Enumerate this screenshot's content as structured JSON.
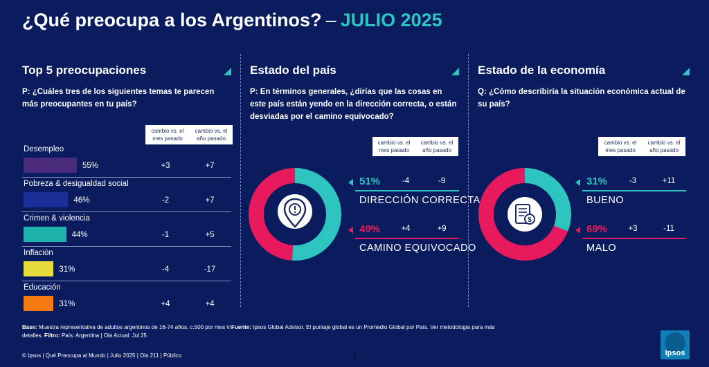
{
  "header": {
    "title": "¿Qué preocupa a los Argentinos?",
    "separator": "–",
    "month": "JULIO 2025"
  },
  "colors": {
    "background": "#0b1c5e",
    "teal": "#2ec4c0",
    "pink": "#e8195c"
  },
  "panels": {
    "top5": {
      "title": "Top 5 preocupaciones",
      "question": "P: ¿Cuáles tres de los siguientes temas te parecen más preocupantes en tu país?",
      "col1": "cambio vs. el mes pasado",
      "col2": "cambio vs. el año pasado"
    },
    "pais": {
      "title": "Estado del país",
      "question": "P: En términos generales, ¿dirías que las cosas en este país están yendo en la dirección correcta, o están desviadas por el camino equivocado?",
      "col1": "cambio vs. el mes pasado",
      "col2": "cambio vs. el año pasado"
    },
    "economia": {
      "title": "Estado de la economía",
      "question": "Q: ¿Cómo describiría la situación económica actual de su país?",
      "col1": "cambio vs. el mes pasado",
      "col2": "cambio vs. el año pasado"
    }
  },
  "chart_data": [
    {
      "type": "bar",
      "title": "Top 5 preocupaciones",
      "categories": [
        "Desempleo",
        "Pobreza & desigualdad social",
        "Crimen & violencia",
        "Inflación",
        "Educación"
      ],
      "values": [
        55,
        46,
        44,
        31,
        31
      ],
      "value_labels": [
        "55%",
        "46%",
        "44%",
        "31%",
        "31%"
      ],
      "colors": [
        "#4a2a7a",
        "#1a2f9a",
        "#1fb3ad",
        "#e8dc3c",
        "#f57a12"
      ],
      "change_month": [
        "+3",
        "-2",
        "-1",
        "-4",
        "+4"
      ],
      "change_year": [
        "+7",
        "+7",
        "+5",
        "-17",
        "+4"
      ]
    },
    {
      "type": "pie",
      "title": "Estado del país",
      "categories": [
        "DIRECCIÓN CORRECTA",
        "CAMINO EQUIVOCADO"
      ],
      "values": [
        51,
        49
      ],
      "value_labels": [
        "51%",
        "49%"
      ],
      "colors": [
        "#2ec4c0",
        "#e8195c"
      ],
      "change_month": [
        "-4",
        "+4"
      ],
      "change_year": [
        "-9",
        "+9"
      ]
    },
    {
      "type": "pie",
      "title": "Estado de la economía",
      "categories": [
        "BUENO",
        "MALO"
      ],
      "values": [
        31,
        69
      ],
      "value_labels": [
        "31%",
        "69%"
      ],
      "colors": [
        "#2ec4c0",
        "#e8195c"
      ],
      "change_month": [
        "-3",
        "+3"
      ],
      "change_year": [
        "+11",
        "-11"
      ]
    }
  ],
  "footer": {
    "base_label": "Base:",
    "base_text": "Muestra representativa de adultos argentinos de 16-74 años. c.500 por mes \\n",
    "fuente_label": "Fuente:",
    "fuente_text": "Ipsos Global Advisor. El puntaje global es un Promedio Global por País. Ver metodologia para más detalles.",
    "filtro_label": "Filtro:",
    "filtro_text": "País: Argentina | Ola Actual: Jul 25",
    "copyright": "© Ipsos | Qué Preocupa al Mundo | Julio 2025 | Ola 211 | Público",
    "page": "2",
    "logo": "Ipsos"
  }
}
